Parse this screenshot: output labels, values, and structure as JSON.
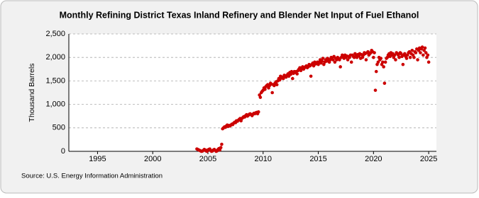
{
  "chart_data": {
    "type": "scatter",
    "title": "Monthly Refining District Texas Inland Refinery and Blender Net Input of Fuel Ethanol",
    "y_label": "Thousand Barrels",
    "source": "Source: U.S. Energy Information Administration",
    "color": "#cc0000",
    "grid": true,
    "xlim": [
      1992.4,
      2025.7
    ],
    "xticks": [
      1995,
      2000,
      2005,
      2010,
      2015,
      2020,
      2025
    ],
    "ylim": [
      0,
      2500
    ],
    "yticks": [
      0,
      500,
      {
        "value": 1000,
        "label": "1,000"
      },
      {
        "value": 1500,
        "label": "1,500"
      },
      {
        "value": 2000,
        "label": "2,000"
      },
      {
        "value": 2500,
        "label": "2,500"
      }
    ],
    "x": [
      2004,
      2004.08,
      2004.17,
      2004.25,
      2004.33,
      2004.42,
      2004.5,
      2004.58,
      2004.67,
      2004.75,
      2004.83,
      2004.92,
      2005,
      2005.08,
      2005.17,
      2005.25,
      2005.33,
      2005.42,
      2005.5,
      2005.58,
      2005.67,
      2005.75,
      2005.83,
      2005.92,
      2006,
      2006.08,
      2006.17,
      2006.25,
      2006.33,
      2006.42,
      2006.5,
      2006.58,
      2006.67,
      2006.75,
      2006.83,
      2006.92,
      2007,
      2007.08,
      2007.17,
      2007.25,
      2007.33,
      2007.42,
      2007.5,
      2007.58,
      2007.67,
      2007.75,
      2007.83,
      2007.92,
      2008,
      2008.08,
      2008.17,
      2008.25,
      2008.33,
      2008.42,
      2008.5,
      2008.58,
      2008.67,
      2008.75,
      2008.83,
      2008.92,
      2009,
      2009.08,
      2009.17,
      2009.25,
      2009.33,
      2009.42,
      2009.5,
      2009.58,
      2009.67,
      2009.75,
      2009.83,
      2009.92,
      2010,
      2010.08,
      2010.17,
      2010.25,
      2010.33,
      2010.42,
      2010.5,
      2010.58,
      2010.67,
      2010.75,
      2010.83,
      2010.92,
      2011,
      2011.08,
      2011.17,
      2011.25,
      2011.33,
      2011.42,
      2011.5,
      2011.58,
      2011.67,
      2011.75,
      2011.83,
      2011.92,
      2012,
      2012.08,
      2012.17,
      2012.25,
      2012.33,
      2012.42,
      2012.5,
      2012.58,
      2012.67,
      2012.75,
      2012.83,
      2012.92,
      2013,
      2013.08,
      2013.17,
      2013.25,
      2013.33,
      2013.42,
      2013.5,
      2013.58,
      2013.67,
      2013.75,
      2013.83,
      2013.92,
      2014,
      2014.08,
      2014.17,
      2014.25,
      2014.33,
      2014.42,
      2014.5,
      2014.58,
      2014.67,
      2014.75,
      2014.83,
      2014.92,
      2015,
      2015.08,
      2015.17,
      2015.25,
      2015.33,
      2015.42,
      2015.5,
      2015.58,
      2015.67,
      2015.75,
      2015.83,
      2015.92,
      2016,
      2016.08,
      2016.17,
      2016.25,
      2016.33,
      2016.42,
      2016.5,
      2016.58,
      2016.67,
      2016.75,
      2016.83,
      2016.92,
      2017,
      2017.08,
      2017.17,
      2017.25,
      2017.33,
      2017.42,
      2017.5,
      2017.58,
      2017.67,
      2017.75,
      2017.83,
      2017.92,
      2018,
      2018.08,
      2018.17,
      2018.25,
      2018.33,
      2018.42,
      2018.5,
      2018.58,
      2018.67,
      2018.75,
      2018.83,
      2018.92,
      2019,
      2019.08,
      2019.17,
      2019.25,
      2019.33,
      2019.42,
      2019.5,
      2019.58,
      2019.67,
      2019.75,
      2019.83,
      2019.92,
      2020,
      2020.08,
      2020.17,
      2020.25,
      2020.33,
      2020.42,
      2020.5,
      2020.58,
      2020.67,
      2020.75,
      2020.83,
      2020.92,
      2021,
      2021.08,
      2021.17,
      2021.25,
      2021.33,
      2021.42,
      2021.5,
      2021.58,
      2021.67,
      2021.75,
      2021.83,
      2021.92,
      2022,
      2022.08,
      2022.17,
      2022.25,
      2022.33,
      2022.42,
      2022.5,
      2022.58,
      2022.67,
      2022.75,
      2022.83,
      2022.92,
      2023,
      2023.08,
      2023.17,
      2023.25,
      2023.33,
      2023.42,
      2023.5,
      2023.58,
      2023.67,
      2023.75,
      2023.83,
      2023.92,
      2024,
      2024.08,
      2024.17,
      2024.25,
      2024.33,
      2024.42,
      2024.5,
      2024.58,
      2024.67,
      2024.75,
      2024.83,
      2024.92,
      2025
    ],
    "values": [
      50,
      40,
      30,
      20,
      10,
      0,
      5,
      20,
      40,
      30,
      10,
      0,
      30,
      40,
      50,
      20,
      0,
      10,
      30,
      40,
      20,
      0,
      10,
      40,
      60,
      30,
      80,
      150,
      480,
      500,
      520,
      510,
      540,
      560,
      530,
      550,
      540,
      560,
      580,
      570,
      600,
      620,
      610,
      650,
      640,
      660,
      680,
      700,
      650,
      700,
      720,
      740,
      730,
      760,
      780,
      750,
      770,
      790,
      800,
      780,
      760,
      790,
      810,
      800,
      820,
      830,
      800,
      840,
      1200,
      1150,
      1250,
      1280,
      1300,
      1350,
      1320,
      1380,
      1400,
      1420,
      1350,
      1400,
      1450,
      1430,
      1250,
      1420,
      1400,
      1450,
      1480,
      1420,
      1500,
      1550,
      1520,
      1600,
      1560,
      1580,
      1550,
      1620,
      1600,
      1580,
      1620,
      1650,
      1600,
      1680,
      1640,
      1700,
      1550,
      1660,
      1700,
      1680,
      1700,
      1650,
      1720,
      1750,
      1780,
      1720,
      1760,
      1800,
      1750,
      1780,
      1800,
      1820,
      1780,
      1800,
      1850,
      1820,
      1600,
      1850,
      1880,
      1820,
      1900,
      1860,
      1880,
      1900,
      1850,
      1900,
      1950,
      1880,
      1920,
      1980,
      1850,
      1900,
      1950,
      1920,
      1980,
      1960,
      1900,
      1950,
      2000,
      1980,
      1950,
      2020,
      1900,
      1980,
      1950,
      2000,
      1980,
      1950,
      1800,
      2000,
      2050,
      2020,
      1980,
      2050,
      2000,
      2030,
      1950,
      2020,
      2000,
      2050,
      1900,
      2050,
      2020,
      2000,
      2080,
      2050,
      2000,
      2060,
      2030,
      2080,
      1980,
      2060,
      2000,
      2050,
      2100,
      2080,
      1950,
      2100,
      2120,
      2050,
      2080,
      2100,
      2150,
      2120,
      2000,
      2100,
      1300,
      1700,
      1850,
      1900,
      2000,
      1950,
      1980,
      1850,
      1900,
      1800,
      1450,
      1900,
      1980,
      2000,
      2050,
      2080,
      2020,
      2100,
      2050,
      2080,
      2000,
      2050,
      1950,
      2100,
      2080,
      2050,
      2000,
      2100,
      2080,
      2020,
      1850,
      2050,
      2080,
      2020,
      1980,
      2050,
      2100,
      2120,
      2000,
      2080,
      2150,
      2050,
      2000,
      2120,
      2100,
      2180,
      1950,
      2150,
      2200,
      2100,
      2180,
      2220,
      2050,
      2150,
      2200,
      2100,
      2000,
      2050,
      1900
    ]
  }
}
